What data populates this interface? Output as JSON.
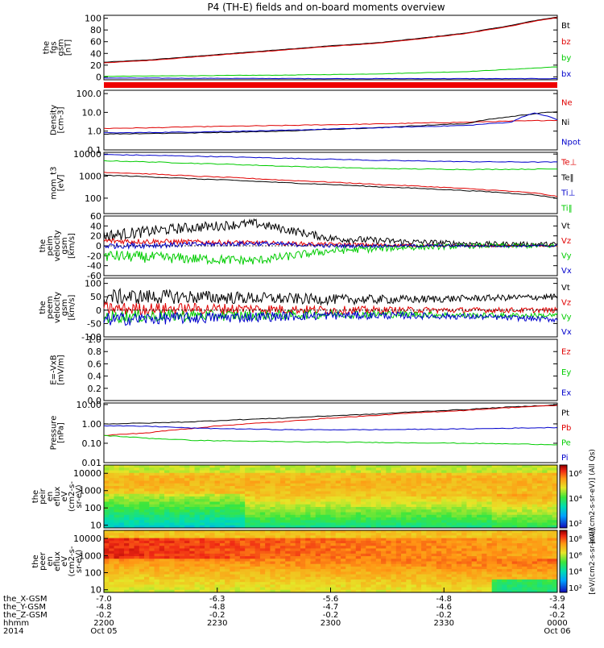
{
  "title": "P4 (TH-E) fields and on-board moments overview",
  "chart_data": {
    "type": "line",
    "panels": [
      {
        "key": "fgs",
        "ylabel_lines": [
          "the",
          "fgs",
          "gsm",
          "[nT]"
        ],
        "ylim": [
          -5,
          105
        ],
        "ticks": [
          "100",
          "80",
          "60",
          "40",
          "20",
          "0"
        ],
        "tick_values": [
          100,
          80,
          60,
          40,
          20,
          0
        ],
        "scale": "linear",
        "legend": [
          {
            "name": "Bt",
            "color": "#000000"
          },
          {
            "name": "bz",
            "color": "#e00000"
          },
          {
            "name": "by",
            "color": "#00cc00"
          },
          {
            "name": "bx",
            "color": "#0000cc"
          }
        ],
        "series": [
          {
            "name": "Bt",
            "color": "#000000",
            "x": [
              0,
              0.1,
              0.2,
              0.3,
              0.4,
              0.5,
              0.6,
              0.7,
              0.8,
              0.9,
              0.95,
              1.0
            ],
            "values": [
              25,
              29,
              35,
              41,
              47,
              53,
              58,
              66,
              75,
              88,
              96,
              102
            ]
          },
          {
            "name": "bz",
            "color": "#e00000",
            "x": [
              0,
              0.1,
              0.2,
              0.3,
              0.4,
              0.5,
              0.6,
              0.7,
              0.8,
              0.9,
              0.95,
              1.0
            ],
            "values": [
              24,
              28,
              34,
              40,
              46,
              52,
              57,
              65,
              74,
              87,
              95,
              101
            ]
          },
          {
            "name": "by",
            "color": "#00cc00",
            "x": [
              0,
              0.2,
              0.4,
              0.6,
              0.8,
              1.0
            ],
            "values": [
              1,
              2,
              3,
              5,
              9,
              17
            ]
          },
          {
            "name": "bx",
            "color": "#0000cc",
            "x": [
              0,
              0.5,
              1.0
            ],
            "values": [
              -2,
              -3,
              -3
            ]
          }
        ]
      },
      {
        "key": "density",
        "ylabel_lines": [
          "Density",
          "[cm-3]"
        ],
        "ylim": [
          0.1,
          150
        ],
        "ticks": [
          "100.0",
          "10.0",
          "1.0",
          "0.1"
        ],
        "tick_values": [
          100,
          10,
          1,
          0.1
        ],
        "scale": "log",
        "legend": [
          {
            "name": "Ne",
            "color": "#e00000"
          },
          {
            "name": "Ni",
            "color": "#000000"
          },
          {
            "name": "Npot",
            "color": "#0000cc"
          }
        ],
        "series": [
          {
            "name": "Ne",
            "color": "#e00000",
            "x": [
              0,
              0.1,
              0.2,
              0.4,
              0.6,
              0.8,
              0.9,
              1.0
            ],
            "values": [
              1.4,
              1.5,
              1.7,
              2.0,
              2.4,
              3.0,
              3.4,
              3.8
            ]
          },
          {
            "name": "Ni",
            "color": "#000000",
            "x": [
              0,
              0.2,
              0.4,
              0.6,
              0.8,
              0.9,
              1.0
            ],
            "values": [
              0.7,
              0.8,
              1.0,
              1.5,
              2.5,
              6,
              11
            ]
          },
          {
            "name": "Npot",
            "color": "#0000cc",
            "x": [
              0,
              0.2,
              0.4,
              0.6,
              0.8,
              0.9,
              0.95,
              1.0
            ],
            "values": [
              0.8,
              0.9,
              1.1,
              1.5,
              2.0,
              3,
              9,
              4
            ]
          }
        ]
      },
      {
        "key": "moments_t",
        "ylabel_lines": [
          "mom_t3",
          "[eV]"
        ],
        "ylim": [
          20,
          12000
        ],
        "ticks": [
          "10000",
          "1000",
          "100"
        ],
        "tick_values": [
          10000,
          1000,
          100
        ],
        "scale": "log",
        "legend": [
          {
            "name": "Te⊥",
            "color": "#e00000"
          },
          {
            "name": "Te‖",
            "color": "#000000"
          },
          {
            "name": "Ti⊥",
            "color": "#0000cc"
          },
          {
            "name": "Ti‖",
            "color": "#00cc00"
          }
        ],
        "series": [
          {
            "name": "Ti⊥",
            "color": "#0000cc",
            "x": [
              0,
              0.2,
              0.4,
              0.6,
              0.8,
              1.0
            ],
            "values": [
              9500,
              8000,
              6500,
              5200,
              4500,
              4300
            ]
          },
          {
            "name": "Ti‖",
            "color": "#00cc00",
            "x": [
              0,
              0.2,
              0.4,
              0.6,
              0.8,
              1.0
            ],
            "values": [
              5000,
              3800,
              2800,
              2200,
              2000,
              2100
            ]
          },
          {
            "name": "Te⊥",
            "color": "#e00000",
            "x": [
              0,
              0.2,
              0.4,
              0.6,
              0.8,
              0.95,
              1.0
            ],
            "values": [
              1500,
              1000,
              650,
              420,
              270,
              170,
              120
            ]
          },
          {
            "name": "Te‖",
            "color": "#000000",
            "x": [
              0,
              0.2,
              0.4,
              0.6,
              0.8,
              0.95,
              1.0
            ],
            "values": [
              1100,
              750,
              500,
              330,
              220,
              140,
              100
            ]
          }
        ]
      },
      {
        "key": "peim_velocity",
        "ylabel_lines": [
          "the",
          "peim",
          "velocity",
          "gsm",
          "[km/s]"
        ],
        "ylim": [
          -60,
          60
        ],
        "ticks": [
          "60",
          "40",
          "20",
          "0",
          "-20",
          "-40",
          "-60"
        ],
        "tick_values": [
          60,
          40,
          20,
          0,
          -20,
          -40,
          -60
        ],
        "scale": "linear",
        "legend": [
          {
            "name": "Vt",
            "color": "#000000"
          },
          {
            "name": "Vz",
            "color": "#e00000"
          },
          {
            "name": "Vy",
            "color": "#00cc00"
          },
          {
            "name": "Vx",
            "color": "#0000cc"
          }
        ],
        "series": [
          {
            "name": "Vt",
            "color": "#000000",
            "center": [
              20,
              35,
              45,
              15,
              8,
              4,
              3
            ],
            "noise": 12
          },
          {
            "name": "Vz",
            "color": "#e00000",
            "center": [
              10,
              8,
              6,
              3,
              1,
              0,
              0
            ],
            "noise": 6
          },
          {
            "name": "Vy",
            "color": "#00cc00",
            "center": [
              -20,
              -25,
              -30,
              -10,
              -3,
              0,
              0
            ],
            "noise": 12
          },
          {
            "name": "Vx",
            "color": "#0000cc",
            "center": [
              0,
              2,
              5,
              0,
              0,
              0,
              0
            ],
            "noise": 6
          }
        ]
      },
      {
        "key": "peem_velocity",
        "ylabel_lines": [
          "the",
          "peem",
          "velocity",
          "gsm",
          "[km/s]"
        ],
        "ylim": [
          -100,
          120
        ],
        "ticks": [
          "100",
          "50",
          "0",
          "-50",
          "-100"
        ],
        "tick_values": [
          100,
          50,
          0,
          -50,
          -100
        ],
        "scale": "linear",
        "legend": [
          {
            "name": "Vt",
            "color": "#000000"
          },
          {
            "name": "Vz",
            "color": "#e00000"
          },
          {
            "name": "Vy",
            "color": "#00cc00"
          },
          {
            "name": "Vx",
            "color": "#0000cc"
          }
        ],
        "series": [
          {
            "name": "Vt",
            "color": "#000000",
            "center": [
              50,
              50,
              45,
              40,
              40,
              45,
              50
            ],
            "noise": 30
          },
          {
            "name": "Vz",
            "color": "#e00000",
            "center": [
              5,
              5,
              5,
              0,
              0,
              0,
              0
            ],
            "noise": 25
          },
          {
            "name": "Vy",
            "color": "#00cc00",
            "center": [
              -25,
              -20,
              -20,
              -15,
              -15,
              -20,
              -20
            ],
            "noise": 25
          },
          {
            "name": "Vx",
            "color": "#0000cc",
            "center": [
              -35,
              -30,
              -25,
              -20,
              -20,
              -25,
              -35
            ],
            "noise": 25
          }
        ]
      },
      {
        "key": "efield",
        "ylabel_lines": [
          "E=-VxB",
          "[mV/m]"
        ],
        "ylim": [
          0,
          1.0
        ],
        "ticks": [
          "1.0",
          "0.8",
          "0.6",
          "0.4",
          "0.2",
          "0.0"
        ],
        "tick_values": [
          1.0,
          0.8,
          0.6,
          0.4,
          0.2,
          0.0
        ],
        "scale": "linear",
        "legend": [
          {
            "name": "Ez",
            "color": "#e00000"
          },
          {
            "name": "Ey",
            "color": "#00cc00"
          },
          {
            "name": "Ex",
            "color": "#0000cc"
          }
        ],
        "series": []
      },
      {
        "key": "pressure",
        "ylabel_lines": [
          "Pressure",
          "[nPa]"
        ],
        "ylim": [
          0.01,
          12
        ],
        "ticks": [
          "10.00",
          "1.00",
          "0.10",
          "0.01"
        ],
        "tick_values": [
          10,
          1,
          0.1,
          0.01
        ],
        "scale": "log",
        "legend": [
          {
            "name": "Pt",
            "color": "#000000"
          },
          {
            "name": "Pb",
            "color": "#e00000"
          },
          {
            "name": "Pe",
            "color": "#00cc00"
          },
          {
            "name": "Pi",
            "color": "#0000cc"
          }
        ],
        "series": [
          {
            "name": "Pt",
            "color": "#000000",
            "x": [
              0,
              0.1,
              0.2,
              0.4,
              0.6,
              0.8,
              1.0
            ],
            "values": [
              1.0,
              1.1,
              1.3,
              2.0,
              3.2,
              5.5,
              9.5
            ]
          },
          {
            "name": "Pb",
            "color": "#e00000",
            "x": [
              0,
              0.1,
              0.2,
              0.4,
              0.6,
              0.8,
              1.0
            ],
            "values": [
              0.25,
              0.35,
              0.6,
              1.3,
              2.7,
              5.0,
              9.0
            ]
          },
          {
            "name": "Pe",
            "color": "#00cc00",
            "x": [
              0,
              0.1,
              0.2,
              0.4,
              0.6,
              0.8,
              1.0
            ],
            "values": [
              0.25,
              0.18,
              0.14,
              0.12,
              0.11,
              0.1,
              0.085
            ]
          },
          {
            "name": "Pi",
            "color": "#0000cc",
            "x": [
              0,
              0.1,
              0.2,
              0.4,
              0.6,
              0.8,
              1.0
            ],
            "values": [
              0.8,
              0.75,
              0.6,
              0.5,
              0.5,
              0.55,
              0.65
            ]
          }
        ]
      }
    ],
    "spectrograms": [
      {
        "key": "peir",
        "ylabel_lines": [
          "the",
          "peir",
          "en",
          "eflux",
          "eV",
          "(cm2-s-",
          "sr-eV)"
        ],
        "ylim": [
          7,
          30000
        ],
        "ticks": [
          "10000",
          "1000",
          "100",
          "10"
        ],
        "tick_values": [
          10000,
          1000,
          100,
          10
        ],
        "scale": "log",
        "colorbar_label": "[eV/(cm2-s-sr-eV)] (All Qs)",
        "colorbar_ticks": [
          "10⁶",
          "10⁴",
          "10²"
        ]
      },
      {
        "key": "peer",
        "ylabel_lines": [
          "the",
          "peer",
          "en",
          "eflux",
          "eV",
          "(cm2-s-",
          "sr-eV)"
        ],
        "ylim": [
          7,
          30000
        ],
        "ticks": [
          "10000",
          "1000",
          "100",
          "10"
        ],
        "tick_values": [
          10000,
          1000,
          100,
          10
        ],
        "scale": "log",
        "colorbar_label": "[eV/(cm2-s-sr-eV)]",
        "colorbar_ticks": [
          "10⁸",
          "10⁶",
          "10⁴",
          "10²"
        ]
      }
    ],
    "x_axis": {
      "rows": [
        {
          "label": "the_X-GSM",
          "values": [
            "-7.0",
            "-6.3",
            "-5.6",
            "-4.8",
            "-3.9"
          ]
        },
        {
          "label": "the_Y-GSM",
          "values": [
            "-4.8",
            "-4.8",
            "-4.7",
            "-4.6",
            "-4.4"
          ]
        },
        {
          "label": "the_Z-GSM",
          "values": [
            "-0.2",
            "-0.2",
            "-0.2",
            "-0.2",
            "-0.2"
          ]
        },
        {
          "label": "hhmm",
          "values": [
            "2200",
            "2230",
            "2300",
            "2330",
            "0000"
          ]
        },
        {
          "label": "2014",
          "values": [
            "Oct 05",
            "",
            "",
            "",
            "Oct 06"
          ]
        }
      ]
    }
  }
}
